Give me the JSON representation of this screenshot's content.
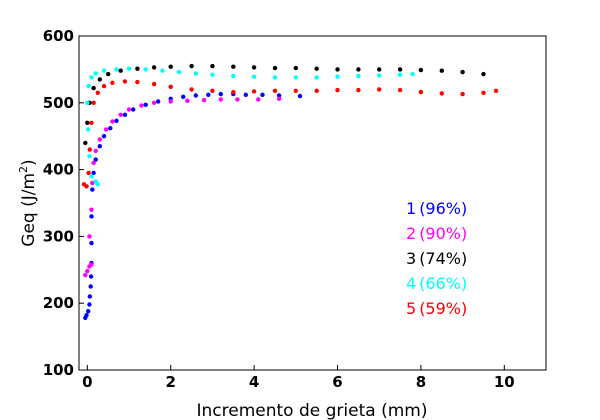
{
  "chart_data": {
    "type": "scatter",
    "xlabel": "Incremento de grieta (mm)",
    "ylabel_main": "Geq (J/m",
    "ylabel_sup": "2",
    "ylabel_close": ")",
    "xlim": [
      -0.2,
      11
    ],
    "ylim": [
      100,
      600
    ],
    "x_ticks": [
      0,
      2,
      4,
      6,
      8,
      10
    ],
    "y_ticks": [
      100,
      200,
      300,
      400,
      500,
      600
    ],
    "grid": false,
    "legend_position": "right-center",
    "series": [
      {
        "name": "1 (96%)",
        "label_num": "1",
        "label_pct": "(96%)",
        "color": "#0000ff",
        "points": [
          [
            -0.05,
            178
          ],
          [
            -0.02,
            182
          ],
          [
            0.02,
            188
          ],
          [
            0.05,
            198
          ],
          [
            0.06,
            210
          ],
          [
            0.08,
            225
          ],
          [
            0.09,
            240
          ],
          [
            0.1,
            260
          ],
          [
            0.1,
            290
          ],
          [
            0.1,
            330
          ],
          [
            0.12,
            370
          ],
          [
            0.15,
            395
          ],
          [
            0.2,
            415
          ],
          [
            0.3,
            435
          ],
          [
            0.4,
            450
          ],
          [
            0.55,
            462
          ],
          [
            0.7,
            473
          ],
          [
            0.9,
            482
          ],
          [
            1.1,
            490
          ],
          [
            1.4,
            497
          ],
          [
            1.7,
            502
          ],
          [
            2.0,
            506
          ],
          [
            2.3,
            509
          ],
          [
            2.6,
            511
          ],
          [
            2.9,
            512
          ],
          [
            3.2,
            513
          ],
          [
            3.5,
            513
          ],
          [
            3.8,
            512
          ],
          [
            4.2,
            512
          ],
          [
            4.6,
            511
          ],
          [
            5.1,
            510
          ]
        ]
      },
      {
        "name": "2 (90%)",
        "label_num": "2",
        "label_pct": "(90%)",
        "color": "#ff00ff",
        "points": [
          [
            -0.05,
            242
          ],
          [
            0.0,
            248
          ],
          [
            0.05,
            255
          ],
          [
            0.1,
            258
          ],
          [
            0.05,
            300
          ],
          [
            0.1,
            340
          ],
          [
            0.12,
            380
          ],
          [
            0.15,
            410
          ],
          [
            0.2,
            428
          ],
          [
            0.3,
            445
          ],
          [
            0.45,
            460
          ],
          [
            0.6,
            472
          ],
          [
            0.8,
            482
          ],
          [
            1.0,
            490
          ],
          [
            1.3,
            496
          ],
          [
            1.6,
            500
          ],
          [
            2.0,
            502
          ],
          [
            2.4,
            503
          ],
          [
            2.8,
            504
          ],
          [
            3.2,
            505
          ],
          [
            3.6,
            505
          ],
          [
            4.1,
            505
          ],
          [
            4.6,
            506
          ]
        ]
      },
      {
        "name": "3 (74%)",
        "label_num": "3",
        "label_pct": "(74%)",
        "color": "#000000",
        "points": [
          [
            -0.05,
            440
          ],
          [
            0.0,
            470
          ],
          [
            0.05,
            500
          ],
          [
            0.15,
            522
          ],
          [
            0.3,
            535
          ],
          [
            0.5,
            543
          ],
          [
            0.8,
            548
          ],
          [
            1.2,
            551
          ],
          [
            1.6,
            553
          ],
          [
            2.0,
            554
          ],
          [
            2.5,
            555
          ],
          [
            3.0,
            555
          ],
          [
            3.5,
            554
          ],
          [
            4.0,
            553
          ],
          [
            4.5,
            552
          ],
          [
            5.0,
            552
          ],
          [
            5.5,
            551
          ],
          [
            6.0,
            550
          ],
          [
            6.5,
            550
          ],
          [
            7.0,
            550
          ],
          [
            7.5,
            550
          ],
          [
            8.0,
            549
          ],
          [
            8.5,
            548
          ],
          [
            9.0,
            546
          ],
          [
            9.5,
            543
          ]
        ]
      },
      {
        "name": "4 (66%)",
        "label_num": "4",
        "label_pct": "(66%)",
        "color": "#00ffff",
        "points": [
          [
            0.25,
            378
          ],
          [
            0.2,
            382
          ],
          [
            0.1,
            390
          ],
          [
            0.05,
            420
          ],
          [
            0.02,
            460
          ],
          [
            0.0,
            500
          ],
          [
            0.03,
            525
          ],
          [
            0.1,
            538
          ],
          [
            0.2,
            544
          ],
          [
            0.4,
            548
          ],
          [
            0.7,
            550
          ],
          [
            1.0,
            551
          ],
          [
            1.4,
            550
          ],
          [
            1.8,
            548
          ],
          [
            2.2,
            546
          ],
          [
            2.6,
            544
          ],
          [
            3.0,
            542
          ],
          [
            3.5,
            540
          ],
          [
            4.0,
            539
          ],
          [
            4.5,
            538
          ],
          [
            5.0,
            538
          ],
          [
            5.5,
            538
          ],
          [
            6.0,
            539
          ],
          [
            6.5,
            540
          ],
          [
            7.0,
            541
          ],
          [
            7.5,
            542
          ],
          [
            7.8,
            543
          ]
        ]
      },
      {
        "name": "5 (59%)",
        "label_num": "5",
        "label_pct": "(59%)",
        "color": "#ff0000",
        "points": [
          [
            -0.08,
            378
          ],
          [
            -0.02,
            375
          ],
          [
            0.03,
            395
          ],
          [
            0.06,
            430
          ],
          [
            0.1,
            470
          ],
          [
            0.15,
            500
          ],
          [
            0.25,
            515
          ],
          [
            0.4,
            525
          ],
          [
            0.6,
            530
          ],
          [
            0.9,
            532
          ],
          [
            1.2,
            531
          ],
          [
            1.6,
            528
          ],
          [
            2.0,
            524
          ],
          [
            2.5,
            520
          ],
          [
            3.0,
            518
          ],
          [
            3.5,
            516
          ],
          [
            4.0,
            517
          ],
          [
            4.5,
            518
          ],
          [
            5.0,
            518
          ],
          [
            5.5,
            518
          ],
          [
            6.0,
            519
          ],
          [
            6.5,
            519
          ],
          [
            7.0,
            520
          ],
          [
            7.5,
            519
          ],
          [
            8.0,
            516
          ],
          [
            8.5,
            514
          ],
          [
            9.0,
            513
          ],
          [
            9.5,
            515
          ],
          [
            9.8,
            518
          ]
        ]
      }
    ]
  }
}
